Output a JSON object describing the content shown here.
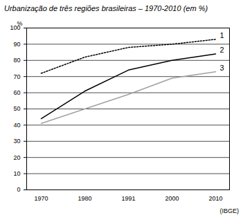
{
  "chart_data": {
    "type": "line",
    "title": "Urbanização de três regiões brasileiras – 1970-2010 (em %)",
    "ylabel": "%",
    "source": "(IBGE)",
    "categories": [
      "1970",
      "1980",
      "1991",
      "2000",
      "2010"
    ],
    "series": [
      {
        "name": "1",
        "color": "#000000",
        "line_style": "dotted",
        "values": [
          72,
          82,
          88,
          90,
          93
        ]
      },
      {
        "name": "2",
        "color": "#000000",
        "line_style": "solid",
        "values": [
          44,
          61,
          74,
          80,
          84
        ]
      },
      {
        "name": "3",
        "color": "#a0a0a0",
        "line_style": "solid",
        "values": [
          41,
          50,
          59,
          69,
          73
        ]
      }
    ],
    "ylim": [
      0,
      100
    ],
    "yticks": [
      0,
      10,
      20,
      30,
      40,
      50,
      60,
      70,
      80,
      90,
      100
    ],
    "grid": true
  }
}
